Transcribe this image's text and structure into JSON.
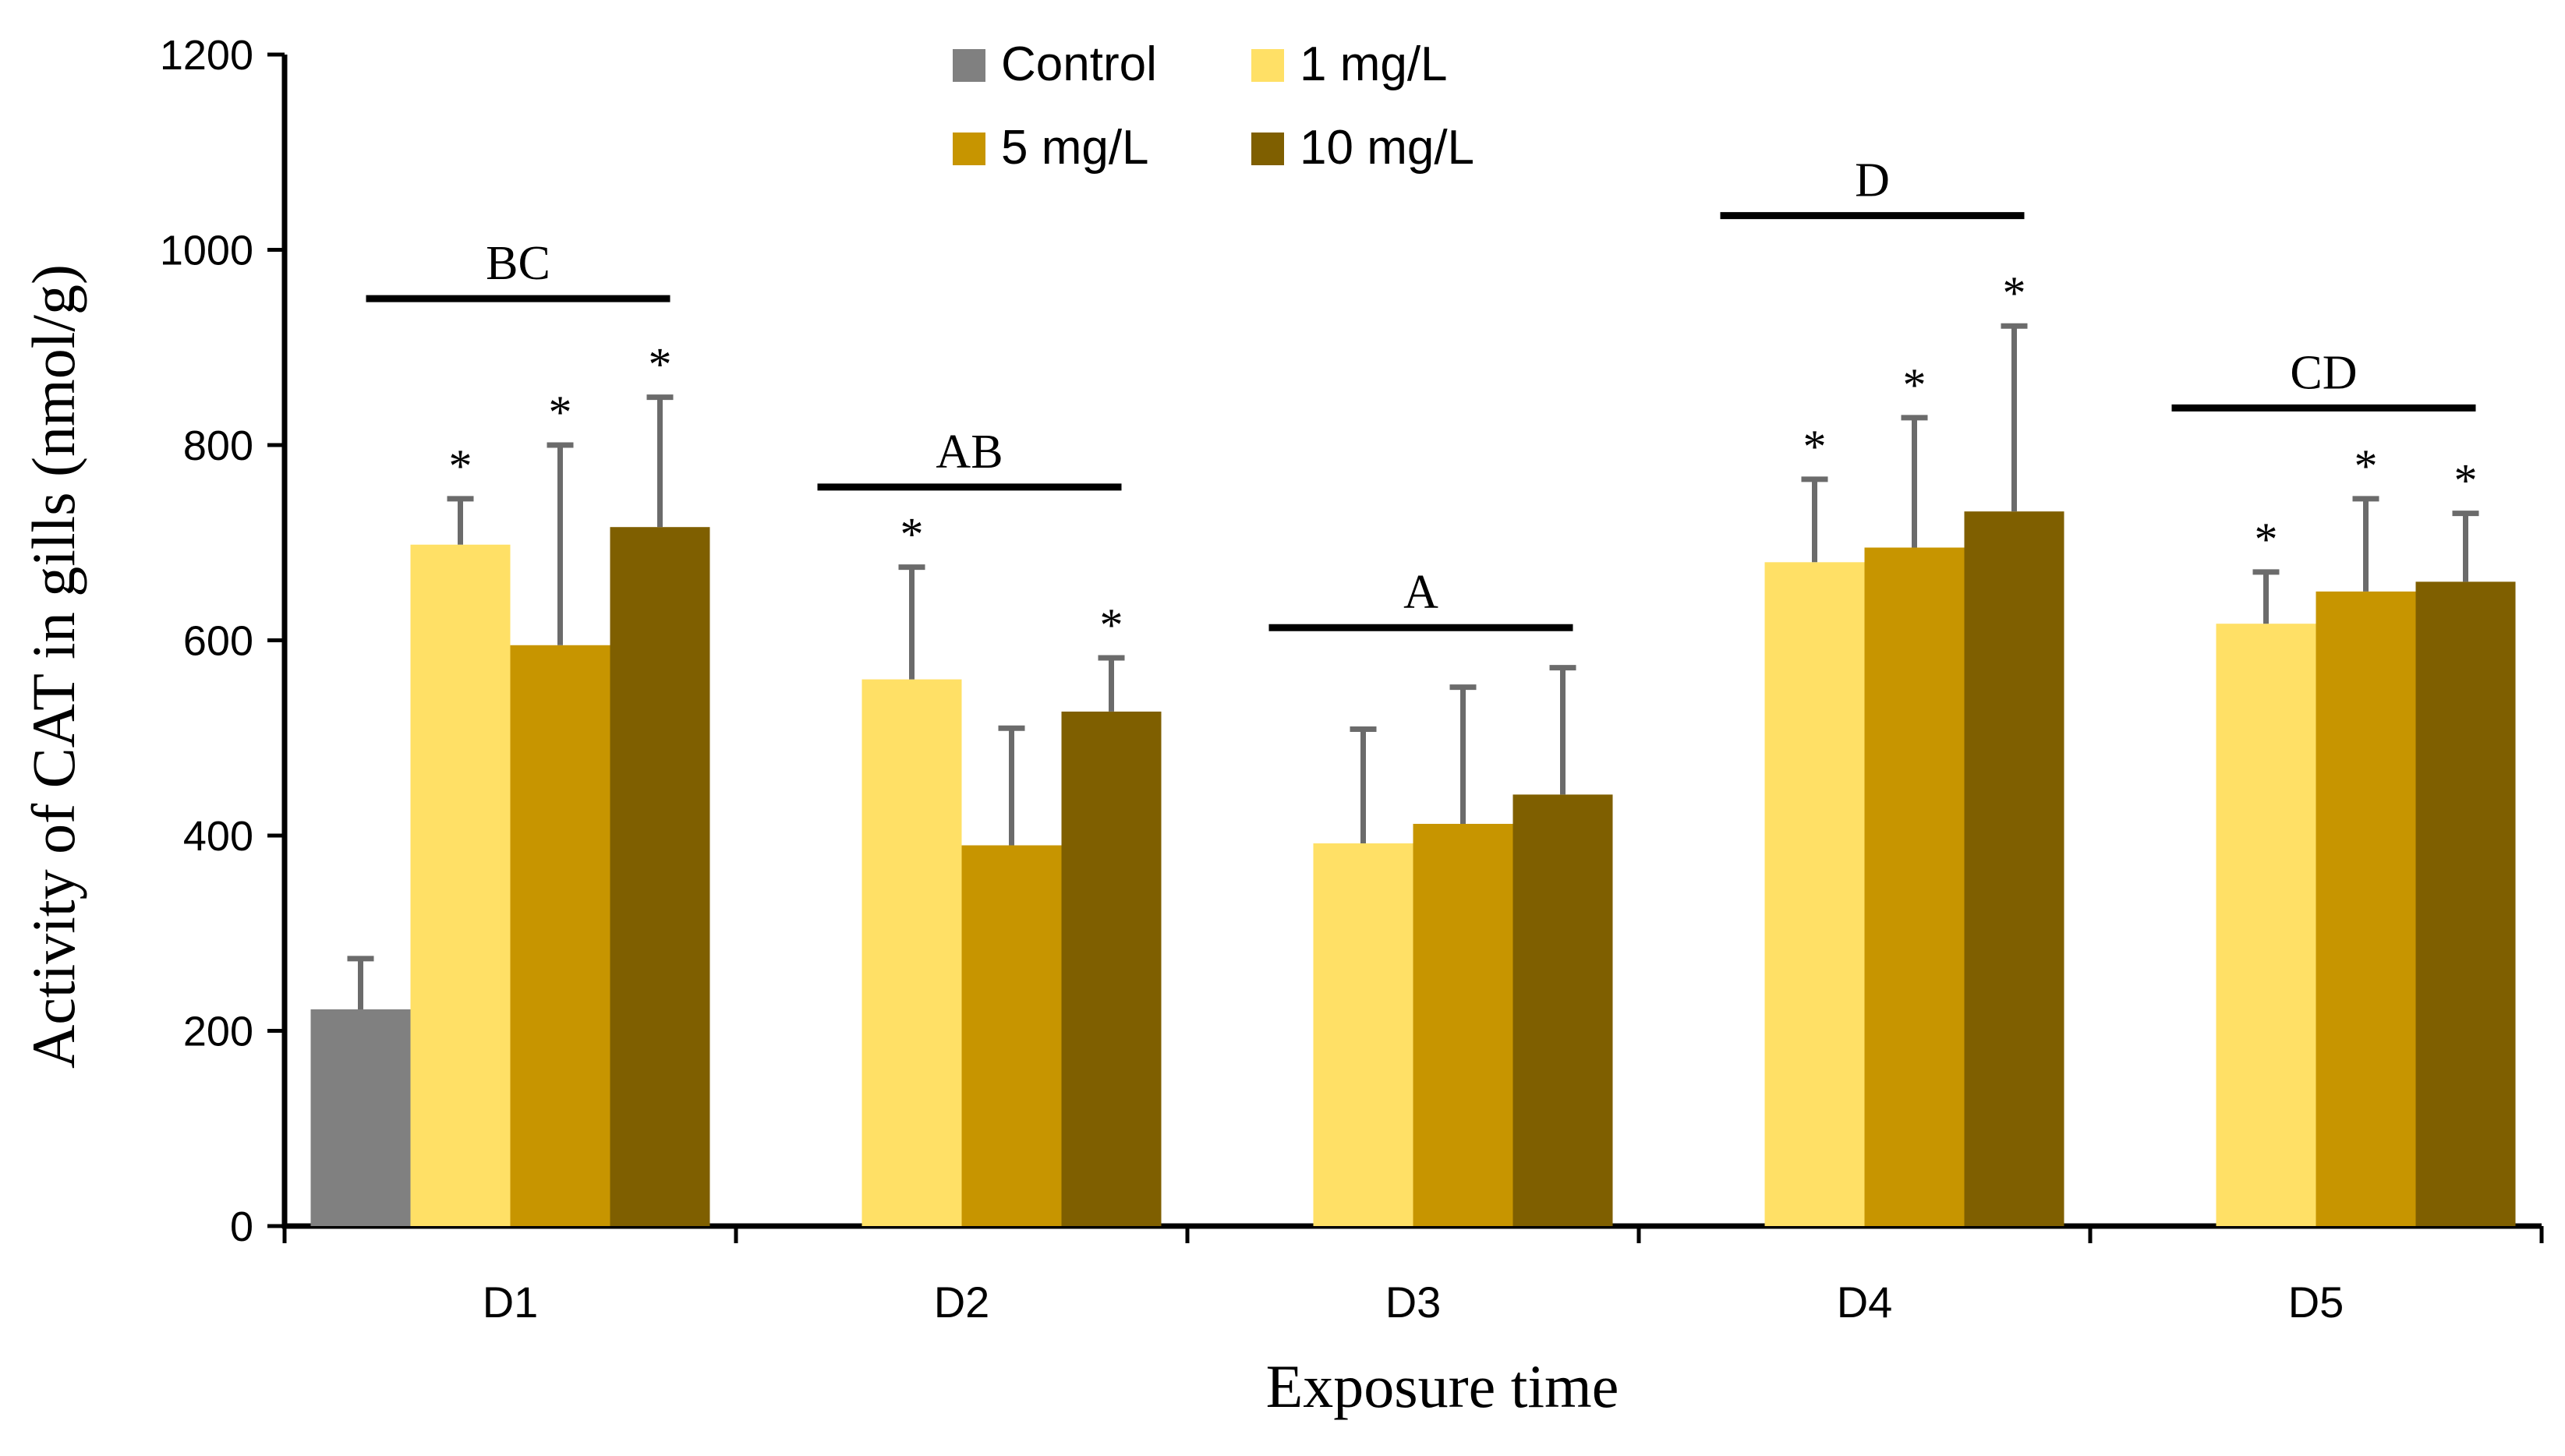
{
  "chart_data": {
    "type": "bar",
    "title": "",
    "xlabel": "Exposure time",
    "ylabel": "Activity of CAT in gills (nmol/g)",
    "ylim": [
      0,
      1200
    ],
    "yticks": [
      0,
      200,
      400,
      600,
      800,
      1000,
      1200
    ],
    "grid": false,
    "legend_position": "top-center",
    "categories": [
      "D1",
      "D2",
      "D3",
      "D4",
      "D5"
    ],
    "series": [
      {
        "name": "Control",
        "color": "#808080",
        "values": [
          222,
          null,
          null,
          null,
          null
        ],
        "errors": [
          52,
          null,
          null,
          null,
          null
        ],
        "significant": [
          false,
          false,
          false,
          false,
          false
        ]
      },
      {
        "name": "1 mg/L",
        "color": "#FFE066",
        "values": [
          698,
          560,
          392,
          680,
          617
        ],
        "errors": [
          47,
          115,
          117,
          85,
          53
        ],
        "significant": [
          true,
          true,
          false,
          true,
          true
        ]
      },
      {
        "name": "5 mg/L",
        "color": "#C79500",
        "values": [
          595,
          390,
          412,
          695,
          650
        ],
        "errors": [
          205,
          120,
          140,
          133,
          95
        ],
        "significant": [
          true,
          false,
          false,
          true,
          true
        ]
      },
      {
        "name": "10 mg/L",
        "color": "#7F5F00",
        "values": [
          716,
          527,
          442,
          732,
          660
        ],
        "errors": [
          133,
          55,
          130,
          190,
          70
        ],
        "significant": [
          true,
          true,
          false,
          true,
          true
        ]
      }
    ],
    "significance_marker": "*",
    "group_letters": [
      {
        "category": "D1",
        "label": "BC",
        "y": 950
      },
      {
        "category": "D2",
        "label": "AB",
        "y": 757
      },
      {
        "category": "D3",
        "label": "A",
        "y": 613
      },
      {
        "category": "D4",
        "label": "D",
        "y": 1035
      },
      {
        "category": "D5",
        "label": "CD",
        "y": 838
      }
    ]
  }
}
